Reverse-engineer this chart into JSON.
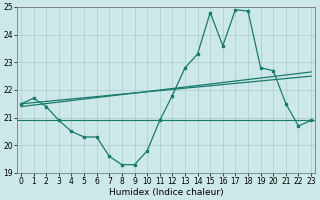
{
  "xlabel": "Humidex (Indice chaleur)",
  "x": [
    0,
    1,
    2,
    3,
    4,
    5,
    6,
    7,
    8,
    9,
    10,
    11,
    12,
    13,
    14,
    15,
    16,
    17,
    18,
    19,
    20,
    21,
    22,
    23
  ],
  "line1_y": [
    21.5,
    21.7,
    21.4,
    20.9,
    20.5,
    20.3,
    20.3,
    19.6,
    19.3,
    19.3,
    19.8,
    20.9,
    21.8,
    22.8,
    23.3,
    24.8,
    23.6,
    24.9,
    24.85,
    22.8,
    22.7,
    21.5,
    20.7,
    20.9
  ],
  "hline_y": 20.9,
  "trend1_x": [
    0,
    23
  ],
  "trend1_y": [
    21.4,
    22.65
  ],
  "trend2_x": [
    0,
    23
  ],
  "trend2_y": [
    21.5,
    22.5
  ],
  "line_color": "#1a7a6e",
  "bg_color": "#cce8e8",
  "grid_color": "#aacccc",
  "ylim": [
    19,
    25
  ],
  "xlim": [
    -0.3,
    23.3
  ],
  "yticks": [
    19,
    20,
    21,
    22,
    23,
    24,
    25
  ],
  "xticks": [
    0,
    1,
    2,
    3,
    4,
    5,
    6,
    7,
    8,
    9,
    10,
    11,
    12,
    13,
    14,
    15,
    16,
    17,
    18,
    19,
    20,
    21,
    22,
    23
  ],
  "tick_fontsize": 5.5,
  "xlabel_fontsize": 6.5
}
